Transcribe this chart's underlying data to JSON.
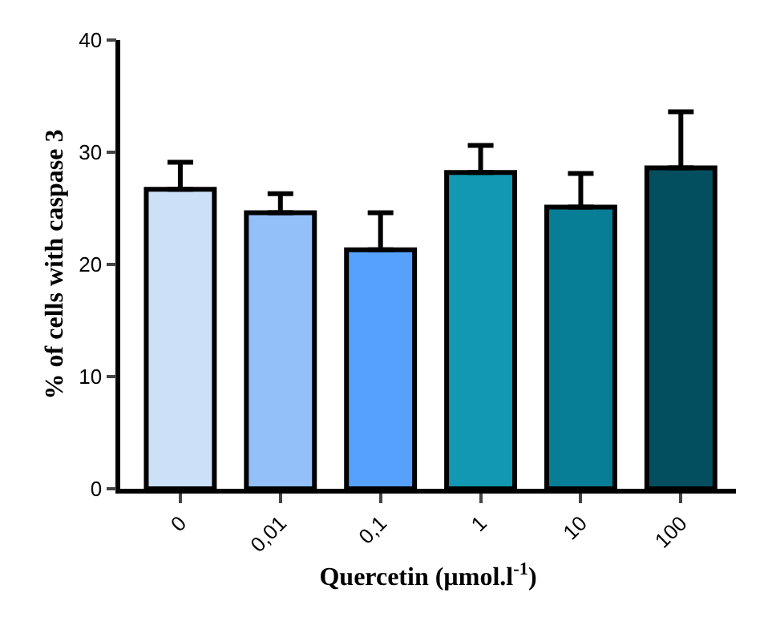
{
  "chart_data": {
    "type": "bar",
    "categories": [
      "0",
      "0,01",
      "0,1",
      "1",
      "10",
      "100"
    ],
    "values": [
      26.7,
      24.6,
      21.3,
      28.2,
      25.1,
      28.6
    ],
    "colors": [
      "#cce0f8",
      "#93c0f8",
      "#56a1fc",
      "#1298b2",
      "#077e96",
      "#034f5f"
    ],
    "errors": [
      [
        26.7,
        29.1
      ],
      [
        24.6,
        26.3
      ],
      [
        21.3,
        24.6
      ],
      [
        28.2,
        30.6
      ],
      [
        25.1,
        28.1
      ],
      [
        28.6,
        33.6
      ]
    ],
    "xlabel": "Quercetin (µmol.l$^{-1}$)",
    "ylabel": "% of cells with caspase 3",
    "ylim": [
      0,
      40
    ],
    "yticks": [
      0,
      10,
      20,
      30,
      40
    ]
  }
}
